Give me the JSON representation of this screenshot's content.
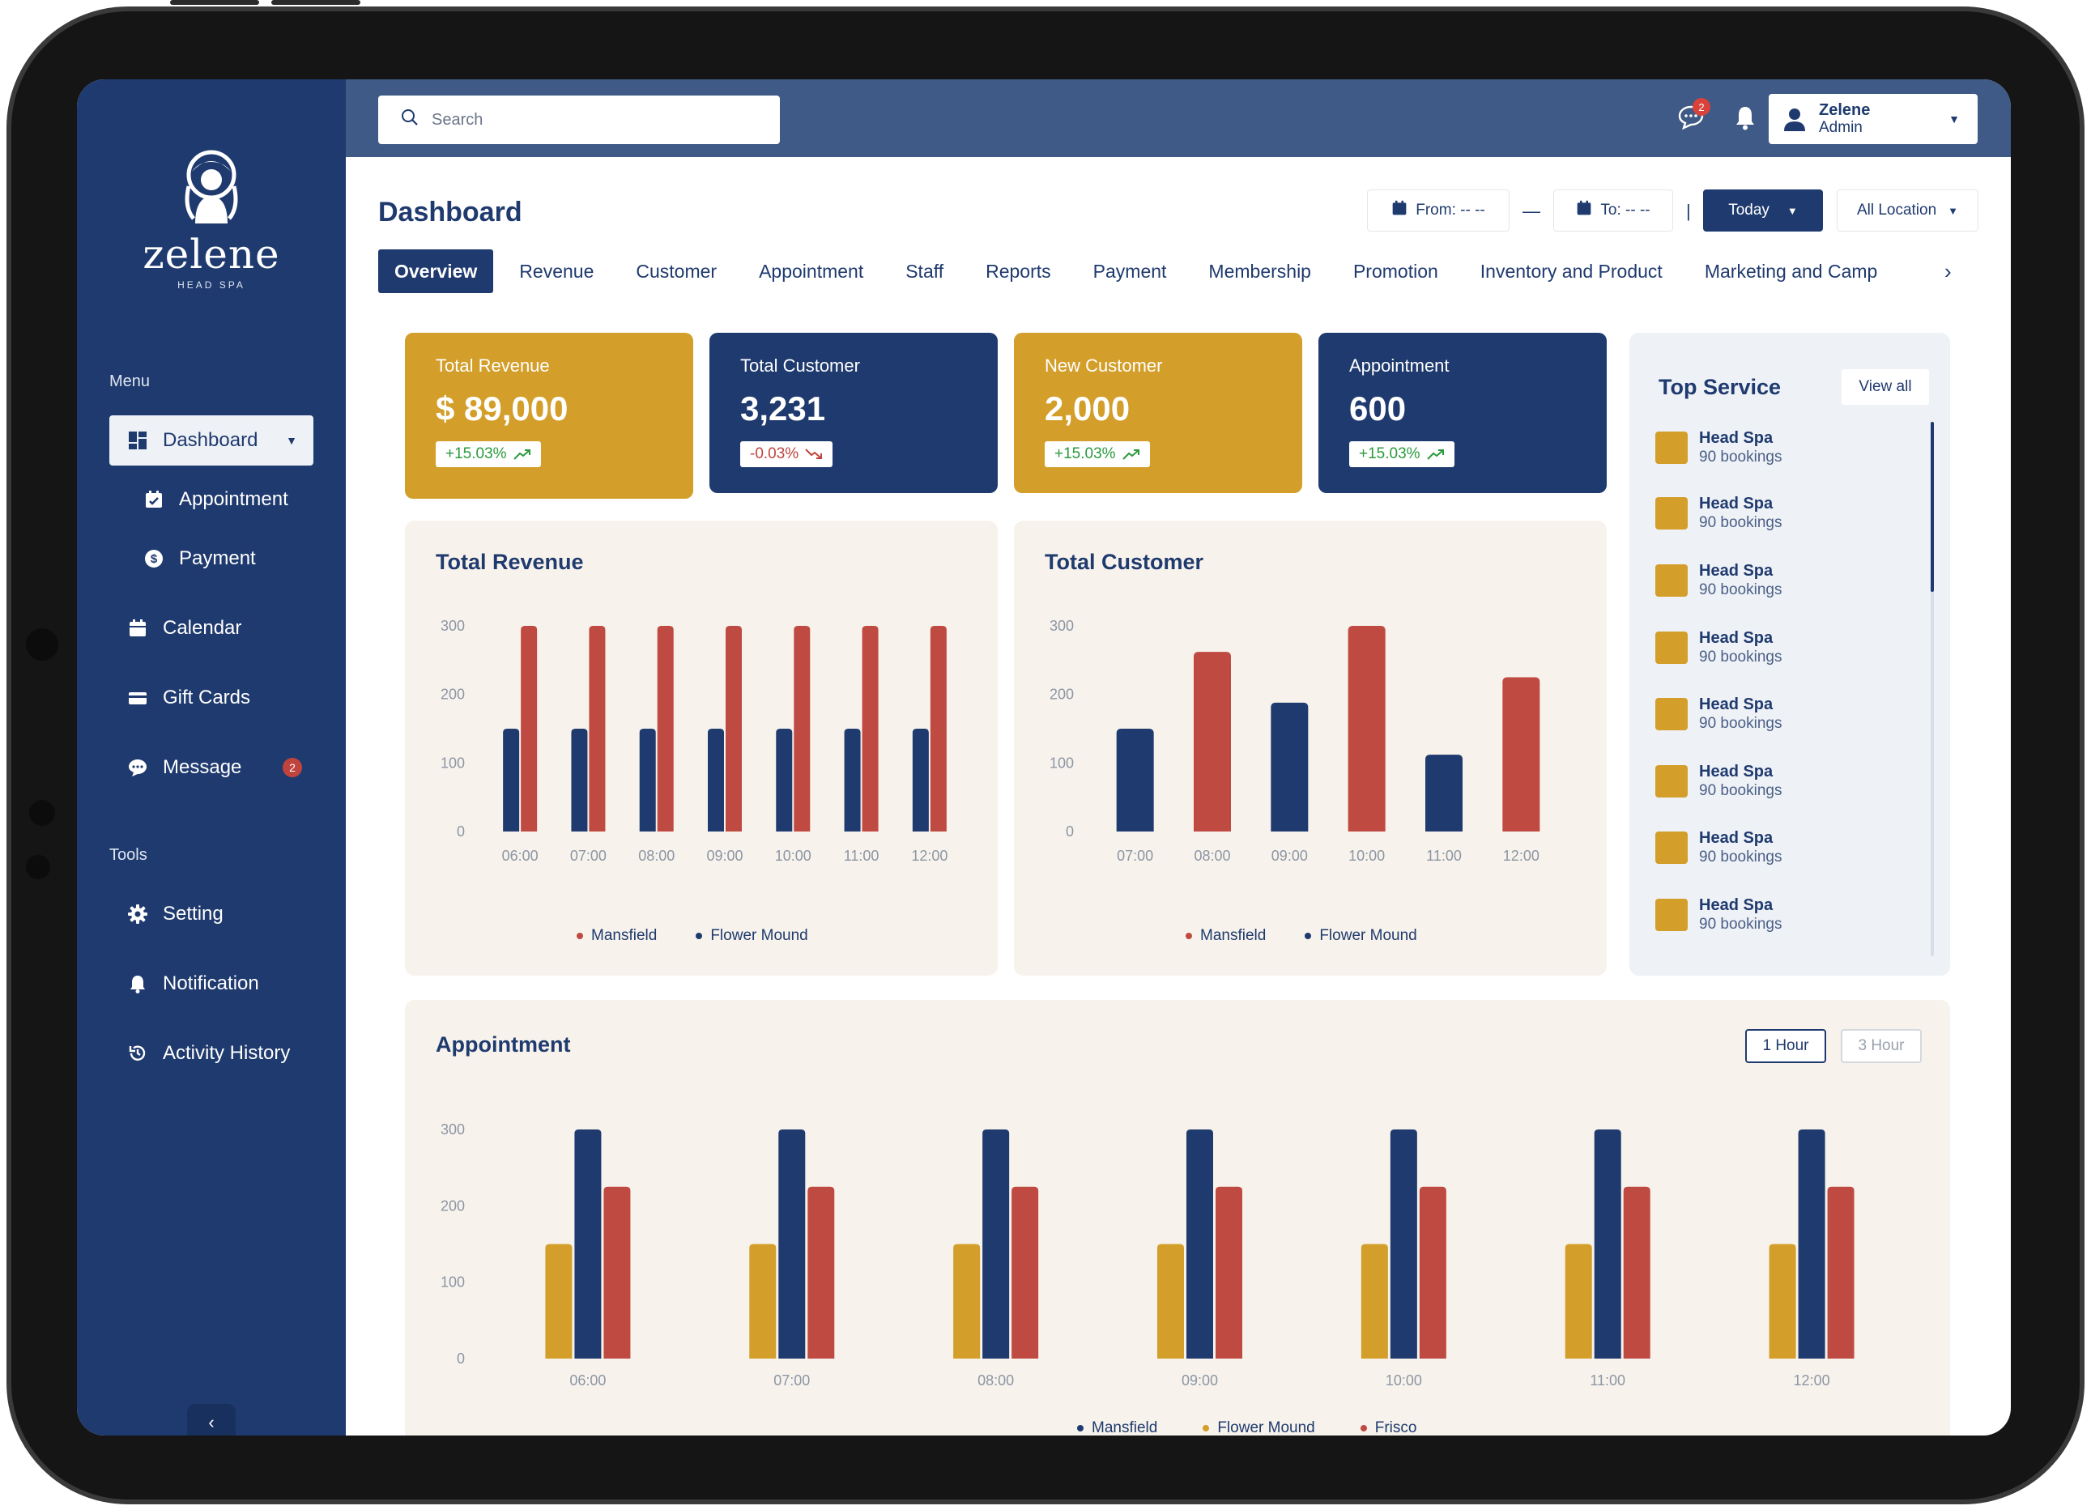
{
  "brand": {
    "name": "zelene",
    "tagline": "HEAD SPA"
  },
  "colors": {
    "navy": "#1f3a6e",
    "gold": "#d39e2a",
    "red": "#bf4a42",
    "topbar": "#3f5a86",
    "panel": "#f7f3ec"
  },
  "sidebar": {
    "menu_label": "Menu",
    "tools_label": "Tools",
    "items": [
      {
        "label": "Dashboard",
        "icon": "grid-icon"
      },
      {
        "label": "Appointment",
        "icon": "calendar-check-icon"
      },
      {
        "label": "Payment",
        "icon": "dollar-icon"
      },
      {
        "label": "Calendar",
        "icon": "calendar-icon"
      },
      {
        "label": "Gift Cards",
        "icon": "card-icon"
      },
      {
        "label": "Message",
        "icon": "chat-icon",
        "badge": "2"
      }
    ],
    "tools": [
      {
        "label": "Setting",
        "icon": "gear-icon"
      },
      {
        "label": "Notification",
        "icon": "bell-icon"
      },
      {
        "label": "Activity History",
        "icon": "history-icon"
      }
    ],
    "collapse_glyph": "‹"
  },
  "topbar": {
    "search_placeholder": "Search",
    "message_badge": "2",
    "user": {
      "name": "Zelene",
      "role": "Admin"
    }
  },
  "header": {
    "title": "Dashboard",
    "from_label": "From: -- --",
    "separator": "—",
    "to_label": "To: -- --",
    "divider": "|",
    "today_label": "Today",
    "location_label": "All Location"
  },
  "tabs": [
    "Overview",
    "Revenue",
    "Customer",
    "Appointment",
    "Staff",
    "Reports",
    "Payment",
    "Membership",
    "Promotion",
    "Inventory and Product",
    "Marketing and Camp"
  ],
  "stats": [
    {
      "label": "Total Revenue",
      "value": "$ 89,000",
      "change": "+15.03%",
      "direction": "up"
    },
    {
      "label": "Total Customer",
      "value": "3,231",
      "change": "-0.03%",
      "direction": "down"
    },
    {
      "label": "New Customer",
      "value": "2,000",
      "change": "+15.03%",
      "direction": "up"
    },
    {
      "label": "Appointment",
      "value": "600",
      "change": "+15.03%",
      "direction": "up"
    }
  ],
  "top_service": {
    "title": "Top Service",
    "view_all": "View all",
    "items": [
      {
        "name": "Head Spa",
        "count": "90 bookings"
      },
      {
        "name": "Head Spa",
        "count": "90 bookings"
      },
      {
        "name": "Head Spa",
        "count": "90 bookings"
      },
      {
        "name": "Head Spa",
        "count": "90 bookings"
      },
      {
        "name": "Head Spa",
        "count": "90 bookings"
      },
      {
        "name": "Head Spa",
        "count": "90 bookings"
      },
      {
        "name": "Head Spa",
        "count": "90 bookings"
      },
      {
        "name": "Head Spa",
        "count": "90 bookings"
      }
    ]
  },
  "appointment_panel": {
    "interval_1": "1 Hour",
    "interval_3": "3 Hour"
  },
  "chart_data": [
    {
      "type": "bar",
      "title": "Total Revenue",
      "categories": [
        "06:00",
        "07:00",
        "08:00",
        "09:00",
        "10:00",
        "11:00",
        "12:00"
      ],
      "yticks": [
        "0",
        "100",
        "200",
        "300"
      ],
      "ylim": [
        0,
        300
      ],
      "series": [
        {
          "name": "Flower Mound",
          "color": "#1f3a6e",
          "values": [
            150,
            150,
            150,
            150,
            150,
            150,
            150
          ]
        },
        {
          "name": "Mansfield",
          "color": "#bf4a42",
          "values": [
            300,
            300,
            300,
            300,
            300,
            300,
            300
          ]
        }
      ],
      "legend": [
        "Mansfield",
        "Flower Mound"
      ],
      "legend_position": "bottom"
    },
    {
      "type": "bar",
      "title": "Total Customer",
      "categories": [
        "07:00",
        "08:00",
        "09:00",
        "10:00",
        "11:00",
        "12:00"
      ],
      "yticks": [
        "0",
        "100",
        "200",
        "300"
      ],
      "ylim": [
        0,
        300
      ],
      "values": [
        150,
        262,
        188,
        300,
        112,
        225
      ],
      "colors": [
        "#1f3a6e",
        "#bf4a42",
        "#1f3a6e",
        "#bf4a42",
        "#1f3a6e",
        "#bf4a42"
      ],
      "legend": [
        "Mansfield",
        "Flower Mound"
      ],
      "legend_position": "bottom"
    },
    {
      "type": "bar",
      "title": "Appointment",
      "categories": [
        "06:00",
        "07:00",
        "08:00",
        "09:00",
        "10:00",
        "11:00",
        "12:00"
      ],
      "yticks": [
        "0",
        "100",
        "200",
        "300"
      ],
      "ylim": [
        0,
        300
      ],
      "series": [
        {
          "name": "Flower Mound",
          "color": "#d39e2a",
          "values": [
            150,
            150,
            150,
            150,
            150,
            150,
            150
          ]
        },
        {
          "name": "Mansfield",
          "color": "#1f3a6e",
          "values": [
            300,
            300,
            300,
            300,
            300,
            300,
            300
          ]
        },
        {
          "name": "Frisco",
          "color": "#bf4a42",
          "values": [
            225,
            225,
            225,
            225,
            225,
            225,
            225
          ]
        }
      ],
      "legend": [
        "Mansfield",
        "Flower Mound",
        "Frisco"
      ],
      "legend_position": "bottom"
    }
  ]
}
